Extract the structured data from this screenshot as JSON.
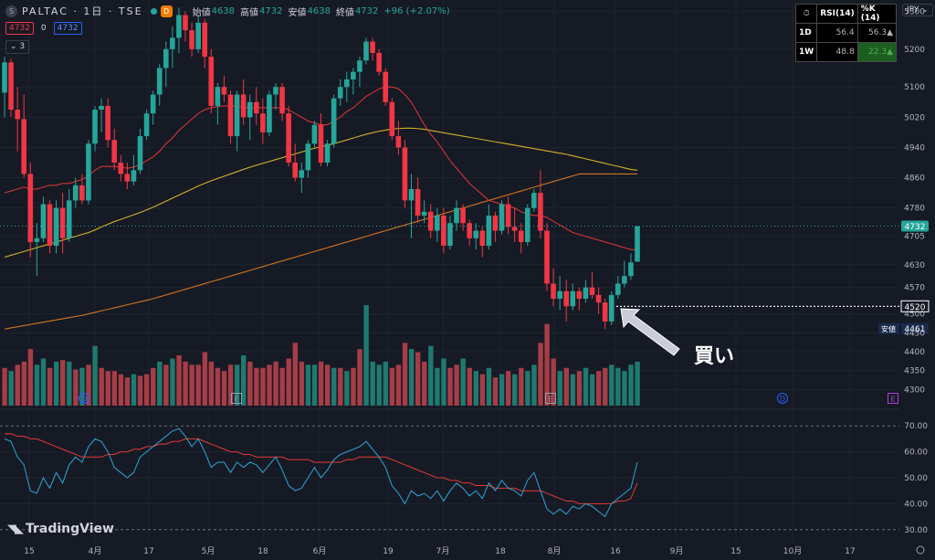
{
  "header": {
    "logo_text": "S",
    "symbol": "PALTAC · 1日 · TSE",
    "delay_badge": "D",
    "open_label": "始値",
    "open": "4638",
    "high_label": "高値",
    "high": "4732",
    "low_label": "安値",
    "low": "4638",
    "close_label": "終値",
    "close": "4732",
    "change": "+96 (+2.07%)"
  },
  "order_row": {
    "sell": "4732",
    "spread": "0",
    "buy": "4732"
  },
  "indicator_toggle": "⌄ 3",
  "currency": "JPY ⌄",
  "table": {
    "headers": [
      "RSI(14)",
      "%K (14)"
    ],
    "rows": [
      {
        "tf": "1D",
        "rsi": "56.4",
        "k": "56.3▲"
      },
      {
        "tf": "1W",
        "rsi": "48.8",
        "k": "22.3▲"
      }
    ]
  },
  "price_axis": {
    "ticks": [
      "5300",
      "5200",
      "5100",
      "5020",
      "4940",
      "4860",
      "4780",
      "4705",
      "4630",
      "4570",
      "4500",
      "4450",
      "4400",
      "4350",
      "4300"
    ],
    "last_price": "4732",
    "marker_price": "4520",
    "low_label": "安値",
    "low_value": "4461"
  },
  "rsi_axis": {
    "ticks": [
      "70.00",
      "60.00",
      "50.00",
      "40.00",
      "30.00"
    ]
  },
  "time_axis": {
    "labels": [
      "15",
      "4月",
      "17",
      "5月",
      "18",
      "6月",
      "19",
      "7月",
      "18",
      "8月",
      "16",
      "9月",
      "15",
      "10月",
      "17"
    ]
  },
  "event_markers": [
    "D",
    "E",
    "E",
    "D",
    "E"
  ],
  "annotation": "買い",
  "brand": "TradingView",
  "colors": {
    "up": "#26a69a",
    "down": "#f23645",
    "ma_short": "#e53935",
    "ma_mid": "#e6c229",
    "ma_long": "#e67e22",
    "rsi": "#2ea6d6",
    "rsi_signal": "#e53935",
    "arrow": "#c9cdd6"
  },
  "chart_data": {
    "type": "candlestick",
    "period": "1日",
    "y_range": [
      4255,
      5330
    ],
    "last_close": 4732,
    "candles": [
      [
        5085,
        5180,
        5020,
        5165
      ],
      [
        5165,
        5175,
        5020,
        5040
      ],
      [
        5040,
        5100,
        4930,
        5015
      ],
      [
        5015,
        5080,
        4860,
        4870
      ],
      [
        4870,
        4900,
        4650,
        4690
      ],
      [
        4690,
        4740,
        4600,
        4700
      ],
      [
        4700,
        4810,
        4690,
        4790
      ],
      [
        4790,
        4800,
        4660,
        4680
      ],
      [
        4680,
        4800,
        4660,
        4780
      ],
      [
        4780,
        4820,
        4660,
        4700
      ],
      [
        4700,
        4830,
        4690,
        4800
      ],
      [
        4800,
        4860,
        4780,
        4840
      ],
      [
        4840,
        4870,
        4790,
        4800
      ],
      [
        4800,
        4960,
        4790,
        4950
      ],
      [
        4950,
        5050,
        4930,
        5040
      ],
      [
        5040,
        5070,
        4980,
        5050
      ],
      [
        5050,
        5070,
        4940,
        4960
      ],
      [
        4960,
        4990,
        4880,
        4900
      ],
      [
        4900,
        4920,
        4850,
        4870
      ],
      [
        4870,
        4900,
        4830,
        4850
      ],
      [
        4850,
        4920,
        4840,
        4880
      ],
      [
        4880,
        4990,
        4870,
        4970
      ],
      [
        4970,
        5040,
        4960,
        5030
      ],
      [
        5030,
        5090,
        5000,
        5080
      ],
      [
        5080,
        5160,
        5050,
        5150
      ],
      [
        5150,
        5220,
        5100,
        5200
      ],
      [
        5200,
        5260,
        5150,
        5230
      ],
      [
        5230,
        5310,
        5190,
        5290
      ],
      [
        5290,
        5300,
        5220,
        5250
      ],
      [
        5250,
        5270,
        5180,
        5200
      ],
      [
        5200,
        5290,
        5190,
        5270
      ],
      [
        5270,
        5280,
        5150,
        5180
      ],
      [
        5180,
        5200,
        5030,
        5050
      ],
      [
        5050,
        5110,
        5000,
        5100
      ],
      [
        5100,
        5130,
        5060,
        5080
      ],
      [
        5080,
        5090,
        4950,
        4970
      ],
      [
        4970,
        5090,
        4930,
        5080
      ],
      [
        5080,
        5120,
        5000,
        5020
      ],
      [
        5020,
        5080,
        4960,
        5060
      ],
      [
        5060,
        5100,
        5000,
        5030
      ],
      [
        5030,
        5070,
        4950,
        4980
      ],
      [
        4980,
        5090,
        4970,
        5080
      ],
      [
        5080,
        5110,
        5040,
        5100
      ],
      [
        5100,
        5110,
        5010,
        5030
      ],
      [
        5030,
        5050,
        4890,
        4900
      ],
      [
        4900,
        4950,
        4850,
        4860
      ],
      [
        4860,
        4900,
        4820,
        4880
      ],
      [
        4880,
        4960,
        4860,
        4950
      ],
      [
        4950,
        5010,
        4940,
        5000
      ],
      [
        5000,
        5030,
        4890,
        4900
      ],
      [
        4900,
        4960,
        4890,
        4950
      ],
      [
        4950,
        5080,
        4940,
        5070
      ],
      [
        5070,
        5120,
        5050,
        5100
      ],
      [
        5100,
        5140,
        5060,
        5120
      ],
      [
        5120,
        5150,
        5080,
        5140
      ],
      [
        5140,
        5180,
        5100,
        5170
      ],
      [
        5170,
        5230,
        5160,
        5220
      ],
      [
        5220,
        5230,
        5170,
        5190
      ],
      [
        5190,
        5200,
        5130,
        5140
      ],
      [
        5140,
        5150,
        5050,
        5060
      ],
      [
        5060,
        5070,
        4960,
        4970
      ],
      [
        4970,
        5010,
        4920,
        4940
      ],
      [
        4940,
        4960,
        4780,
        4800
      ],
      [
        4800,
        4870,
        4700,
        4830
      ],
      [
        4830,
        4860,
        4740,
        4760
      ],
      [
        4760,
        4800,
        4740,
        4770
      ],
      [
        4770,
        4790,
        4700,
        4720
      ],
      [
        4720,
        4780,
        4690,
        4760
      ],
      [
        4760,
        4780,
        4660,
        4680
      ],
      [
        4680,
        4760,
        4670,
        4740
      ],
      [
        4740,
        4800,
        4720,
        4780
      ],
      [
        4780,
        4790,
        4720,
        4740
      ],
      [
        4740,
        4750,
        4680,
        4700
      ],
      [
        4700,
        4740,
        4670,
        4720
      ],
      [
        4720,
        4730,
        4650,
        4680
      ],
      [
        4680,
        4790,
        4670,
        4760
      ],
      [
        4760,
        4770,
        4690,
        4720
      ],
      [
        4720,
        4800,
        4710,
        4790
      ],
      [
        4790,
        4810,
        4710,
        4730
      ],
      [
        4730,
        4780,
        4690,
        4720
      ],
      [
        4720,
        4740,
        4660,
        4690
      ],
      [
        4690,
        4790,
        4680,
        4780
      ],
      [
        4780,
        4830,
        4770,
        4820
      ],
      [
        4820,
        4880,
        4700,
        4720
      ],
      [
        4720,
        4740,
        4560,
        4580
      ],
      [
        4580,
        4620,
        4520,
        4540
      ],
      [
        4540,
        4600,
        4510,
        4560
      ],
      [
        4560,
        4590,
        4480,
        4520
      ],
      [
        4520,
        4580,
        4510,
        4560
      ],
      [
        4560,
        4570,
        4510,
        4540
      ],
      [
        4540,
        4590,
        4530,
        4570
      ],
      [
        4570,
        4610,
        4540,
        4550
      ],
      [
        4550,
        4570,
        4500,
        4530
      ],
      [
        4530,
        4540,
        4460,
        4480
      ],
      [
        4480,
        4560,
        4470,
        4550
      ],
      [
        4550,
        4600,
        4540,
        4580
      ],
      [
        4580,
        4640,
        4570,
        4600
      ],
      [
        4600,
        4660,
        4590,
        4636
      ],
      [
        4638,
        4732,
        4638,
        4732
      ]
    ],
    "volume": [
      [
        120,
        "down"
      ],
      [
        110,
        "up"
      ],
      [
        130,
        "down"
      ],
      [
        140,
        "down"
      ],
      [
        180,
        "down"
      ],
      [
        130,
        "up"
      ],
      [
        150,
        "up"
      ],
      [
        120,
        "down"
      ],
      [
        140,
        "up"
      ],
      [
        145,
        "down"
      ],
      [
        140,
        "up"
      ],
      [
        115,
        "down"
      ],
      [
        120,
        "up"
      ],
      [
        130,
        "down"
      ],
      [
        190,
        "up"
      ],
      [
        120,
        "down"
      ],
      [
        110,
        "down"
      ],
      [
        110,
        "down"
      ],
      [
        100,
        "down"
      ],
      [
        90,
        "down"
      ],
      [
        100,
        "up"
      ],
      [
        95,
        "down"
      ],
      [
        100,
        "down"
      ],
      [
        120,
        "down"
      ],
      [
        140,
        "up"
      ],
      [
        130,
        "down"
      ],
      [
        150,
        "up"
      ],
      [
        160,
        "down"
      ],
      [
        140,
        "down"
      ],
      [
        130,
        "down"
      ],
      [
        130,
        "down"
      ],
      [
        170,
        "down"
      ],
      [
        140,
        "down"
      ],
      [
        120,
        "down"
      ],
      [
        110,
        "down"
      ],
      [
        130,
        "down"
      ],
      [
        130,
        "up"
      ],
      [
        160,
        "up"
      ],
      [
        140,
        "down"
      ],
      [
        120,
        "down"
      ],
      [
        120,
        "down"
      ],
      [
        130,
        "down"
      ],
      [
        140,
        "down"
      ],
      [
        120,
        "down"
      ],
      [
        150,
        "down"
      ],
      [
        200,
        "down"
      ],
      [
        140,
        "down"
      ],
      [
        130,
        "up"
      ],
      [
        130,
        "up"
      ],
      [
        140,
        "down"
      ],
      [
        130,
        "down"
      ],
      [
        120,
        "up"
      ],
      [
        120,
        "down"
      ],
      [
        110,
        "up"
      ],
      [
        120,
        "down"
      ],
      [
        180,
        "down"
      ],
      [
        320,
        "up"
      ],
      [
        140,
        "up"
      ],
      [
        130,
        "up"
      ],
      [
        140,
        "up"
      ],
      [
        120,
        "down"
      ],
      [
        130,
        "down"
      ],
      [
        200,
        "down"
      ],
      [
        180,
        "up"
      ],
      [
        170,
        "down"
      ],
      [
        140,
        "down"
      ],
      [
        190,
        "up"
      ],
      [
        120,
        "up"
      ],
      [
        150,
        "up"
      ],
      [
        120,
        "down"
      ],
      [
        130,
        "down"
      ],
      [
        150,
        "up"
      ],
      [
        120,
        "down"
      ],
      [
        110,
        "up"
      ],
      [
        100,
        "down"
      ],
      [
        120,
        "up"
      ],
      [
        90,
        "down"
      ],
      [
        100,
        "up"
      ],
      [
        110,
        "down"
      ],
      [
        100,
        "up"
      ],
      [
        120,
        "down"
      ],
      [
        110,
        "up"
      ],
      [
        130,
        "up"
      ],
      [
        200,
        "down"
      ],
      [
        260,
        "down"
      ],
      [
        150,
        "down"
      ],
      [
        110,
        "up"
      ],
      [
        120,
        "down"
      ],
      [
        100,
        "up"
      ],
      [
        110,
        "down"
      ],
      [
        120,
        "up"
      ],
      [
        100,
        "up"
      ],
      [
        110,
        "down"
      ],
      [
        120,
        "down"
      ],
      [
        130,
        "up"
      ],
      [
        120,
        "up"
      ],
      [
        110,
        "up"
      ],
      [
        130,
        "up"
      ],
      [
        140,
        "up"
      ]
    ],
    "ma_short": [
      4820,
      4825,
      4830,
      4835,
      4830,
      4830,
      4835,
      4840,
      4840,
      4845,
      4845,
      4850,
      4855,
      4865,
      4880,
      4890,
      4890,
      4890,
      4888,
      4885,
      4888,
      4895,
      4905,
      4915,
      4930,
      4950,
      4965,
      4985,
      5000,
      5015,
      5030,
      5040,
      5045,
      5048,
      5050,
      5050,
      5050,
      5045,
      5045,
      5045,
      5045,
      5045,
      5045,
      5045,
      5040,
      5030,
      5020,
      5010,
      5005,
      5000,
      5000,
      5010,
      5020,
      5035,
      5045,
      5060,
      5075,
      5085,
      5095,
      5100,
      5100,
      5095,
      5080,
      5060,
      5030,
      5000,
      4975,
      4955,
      4930,
      4905,
      4885,
      4865,
      4845,
      4830,
      4815,
      4800,
      4795,
      4790,
      4785,
      4780,
      4770,
      4765,
      4760,
      4760,
      4755,
      4745,
      4735,
      4725,
      4715,
      4710,
      4705,
      4700,
      4695,
      4690,
      4685,
      4680,
      4675,
      4670,
      4670
    ],
    "ma_mid": [
      4650,
      4655,
      4660,
      4665,
      4670,
      4675,
      4680,
      4685,
      4690,
      4695,
      4700,
      4705,
      4710,
      4715,
      4722,
      4730,
      4737,
      4744,
      4750,
      4756,
      4762,
      4768,
      4775,
      4782,
      4790,
      4798,
      4806,
      4814,
      4822,
      4830,
      4838,
      4845,
      4852,
      4858,
      4864,
      4870,
      4876,
      4882,
      4888,
      4893,
      4898,
      4903,
      4908,
      4913,
      4918,
      4923,
      4928,
      4933,
      4938,
      4942,
      4946,
      4950,
      4955,
      4960,
      4965,
      4970,
      4975,
      4979,
      4983,
      4986,
      4989,
      4990,
      4991,
      4991,
      4990,
      4988,
      4985,
      4982,
      4979,
      4976,
      4973,
      4970,
      4967,
      4964,
      4961,
      4958,
      4955,
      4952,
      4949,
      4946,
      4943,
      4940,
      4937,
      4934,
      4931,
      4928,
      4925,
      4922,
      4918,
      4914,
      4910,
      4906,
      4902,
      4898,
      4894,
      4890,
      4886,
      4882,
      4880
    ],
    "ma_long": [
      4460,
      4463,
      4466,
      4469,
      4472,
      4475,
      4478,
      4481,
      4484,
      4487,
      4490,
      4493,
      4496,
      4500,
      4504,
      4508,
      4512,
      4516,
      4520,
      4524,
      4528,
      4532,
      4536,
      4540,
      4545,
      4550,
      4555,
      4560,
      4565,
      4570,
      4575,
      4580,
      4585,
      4590,
      4595,
      4600,
      4605,
      4610,
      4615,
      4620,
      4625,
      4630,
      4635,
      4640,
      4645,
      4650,
      4655,
      4660,
      4665,
      4670,
      4675,
      4680,
      4685,
      4690,
      4695,
      4700,
      4705,
      4710,
      4715,
      4720,
      4725,
      4730,
      4735,
      4740,
      4745,
      4750,
      4755,
      4760,
      4765,
      4770,
      4775,
      4780,
      4785,
      4790,
      4795,
      4800,
      4805,
      4810,
      4815,
      4820,
      4825,
      4830,
      4835,
      4840,
      4845,
      4850,
      4855,
      4860,
      4865,
      4870,
      4870,
      4870,
      4870,
      4870,
      4870,
      4870,
      4870,
      4870,
      4870
    ],
    "rsi_range": [
      25,
      75
    ],
    "rsi": [
      65,
      64,
      58,
      55,
      45,
      44,
      50,
      46,
      52,
      48,
      55,
      58,
      56,
      62,
      65,
      64,
      60,
      54,
      52,
      50,
      52,
      58,
      60,
      62,
      64,
      66,
      68,
      69,
      66,
      62,
      65,
      60,
      54,
      56,
      56,
      52,
      56,
      54,
      56,
      55,
      52,
      55,
      58,
      53,
      47,
      45,
      46,
      50,
      54,
      50,
      53,
      57,
      59,
      60,
      61,
      62,
      64,
      61,
      58,
      54,
      47,
      44,
      40,
      45,
      43,
      44,
      42,
      45,
      41,
      45,
      48,
      46,
      43,
      45,
      42,
      48,
      45,
      49,
      46,
      45,
      43,
      49,
      52,
      45,
      38,
      36,
      38,
      36,
      39,
      38,
      40,
      39,
      37,
      35,
      40,
      42,
      44,
      46,
      56
    ],
    "rsi_signal": [
      67,
      67,
      66,
      66,
      65,
      65,
      64,
      63,
      62,
      61,
      60,
      59,
      58,
      58,
      58,
      58,
      59,
      59,
      60,
      60,
      61,
      61,
      62,
      62,
      63,
      63,
      64,
      64,
      65,
      65,
      65,
      64,
      63,
      62,
      61,
      60,
      60,
      59,
      59,
      58,
      58,
      58,
      58,
      58,
      57,
      57,
      57,
      57,
      56,
      56,
      56,
      56,
      56,
      57,
      57,
      58,
      58,
      58,
      58,
      58,
      57,
      56,
      55,
      54,
      53,
      52,
      51,
      50,
      50,
      49,
      49,
      48,
      48,
      47,
      47,
      47,
      46,
      46,
      46,
      46,
      45,
      45,
      45,
      45,
      44,
      43,
      42,
      41,
      41,
      40,
      40,
      40,
      40,
      40,
      40,
      41,
      41,
      42,
      48
    ]
  }
}
